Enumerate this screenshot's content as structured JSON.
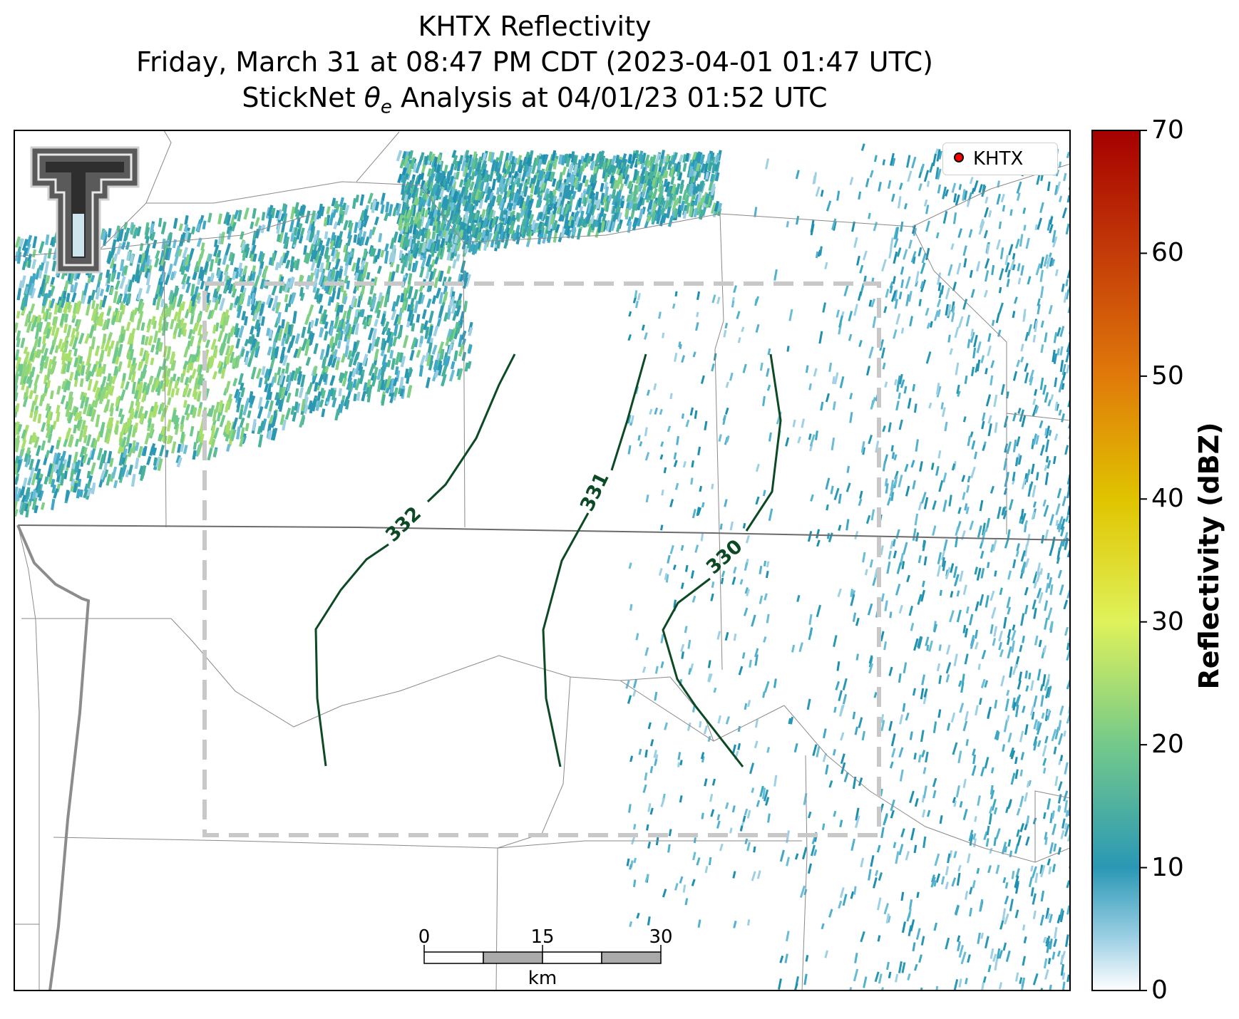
{
  "title": {
    "line1": "KHTX Reflectivity",
    "line2": "Friday, March 31 at 08:47 PM CDT (2023-04-01 01:47 UTC)",
    "line3_prefix": "StickNet ",
    "line3_symbol": "θ",
    "line3_subscript": "e",
    "line3_suffix": " Analysis at 04/01/23 01:52 UTC"
  },
  "legend": {
    "label": "KHTX",
    "marker_color": "#ff0000"
  },
  "colorbar": {
    "label": "Reflectivity (dBZ)",
    "min": 0,
    "max": 70,
    "ticks": [
      "0",
      "10",
      "20",
      "30",
      "40",
      "50",
      "60",
      "70"
    ],
    "colors": [
      "#ffffff",
      "#2a98b5",
      "#74c98a",
      "#dff25a",
      "#e0c400",
      "#e07a0a",
      "#c43b08",
      "#a50000"
    ]
  },
  "contours": {
    "color": "#0b4a25",
    "labels": [
      "332",
      "331",
      "330"
    ]
  },
  "scale_bar": {
    "ticks": [
      "0",
      "15",
      "30"
    ],
    "unit": "km"
  },
  "logo": {
    "name": "Texas Tech double-T"
  }
}
